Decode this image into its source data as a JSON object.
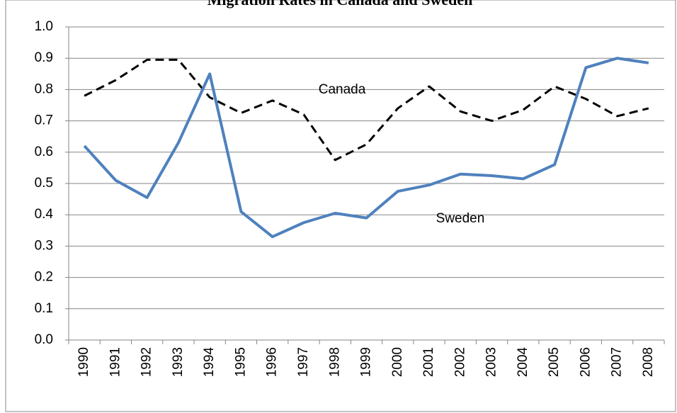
{
  "chart_data": {
    "type": "line",
    "title": "Migration Rates in Canada and Sweden",
    "categories": [
      "1990",
      "1991",
      "1992",
      "1993",
      "1994",
      "1995",
      "1996",
      "1997",
      "1998",
      "1999",
      "2000",
      "2001",
      "2002",
      "2003",
      "2004",
      "2005",
      "2006",
      "2007",
      "2008"
    ],
    "series": [
      {
        "name": "Canada",
        "color": "#000000",
        "dashed": true,
        "values": [
          0.78,
          0.83,
          0.895,
          0.895,
          0.775,
          0.725,
          0.765,
          0.72,
          0.575,
          0.625,
          0.74,
          0.81,
          0.73,
          0.7,
          0.735,
          0.81,
          0.77,
          0.715,
          0.74
        ]
      },
      {
        "name": "Sweden",
        "color": "#4f81bd",
        "dashed": false,
        "values": [
          0.62,
          0.51,
          0.455,
          0.63,
          0.85,
          0.41,
          0.33,
          0.375,
          0.405,
          0.39,
          0.475,
          0.495,
          0.53,
          0.525,
          0.515,
          0.56,
          0.87,
          0.9,
          0.885
        ]
      }
    ],
    "ylim": [
      0,
      1
    ],
    "yticks": [
      {
        "value": 0,
        "label": "0.0"
      },
      0.1,
      0.2,
      0.3,
      0.4,
      0.5,
      0.6,
      0.7,
      0.8,
      0.9,
      {
        "value": 1,
        "label": "1.0"
      }
    ],
    "grid": true
  }
}
